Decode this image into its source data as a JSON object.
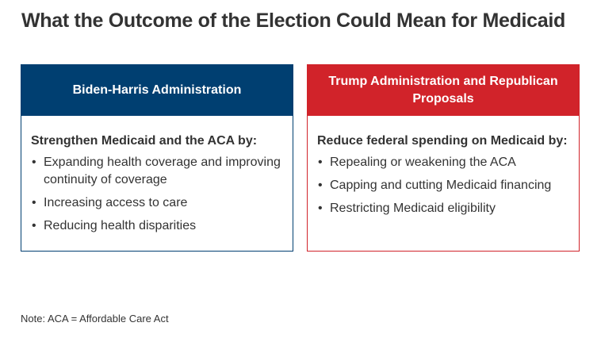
{
  "title": "What the Outcome of the Election Could Mean for Medicaid",
  "colors": {
    "biden_blue": "#003f71",
    "trump_red": "#d1232a",
    "text": "#333333"
  },
  "cards": [
    {
      "header": "Biden-Harris Administration",
      "lead": "Strengthen Medicaid and the ACA by:",
      "items": [
        "Expanding health coverage and improving continuity of coverage",
        "Increasing access to care",
        "Reducing health disparities"
      ]
    },
    {
      "header": "Trump Administration and Republican Proposals",
      "lead": "Reduce federal spending on Medicaid by:",
      "items": [
        "Repealing or weakening the ACA",
        "Capping and cutting Medicaid financing",
        "Restricting Medicaid eligibility"
      ]
    }
  ],
  "bullet_glyph": "•",
  "note": "Note: ACA = Affordable Care Act"
}
